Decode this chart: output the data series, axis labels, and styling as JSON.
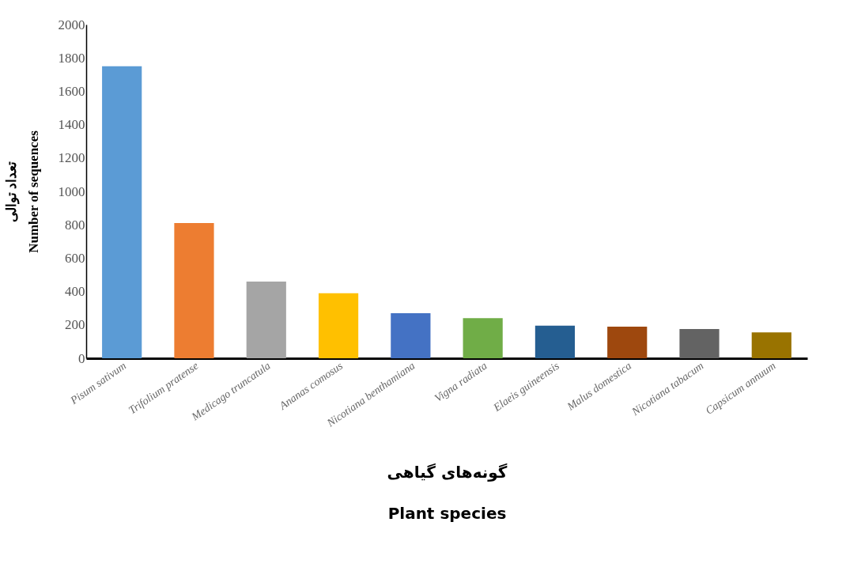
{
  "chart_data": {
    "type": "bar",
    "xlabel": "گونه‌های گیاهی\nPlant species",
    "ylabel": "تعداد توالی\nNumber of sequences",
    "categories": [
      "Pisum sativum",
      "Trifolium pratense",
      "Medicago truncatula",
      "Ananas comosus",
      "Nicotiana benthamiana",
      "Vigna radiata",
      "Elaeis guineensis",
      "Malus domestica",
      "Nicotiana tabacum",
      "Capsicum annuum"
    ],
    "values": [
      1750,
      810,
      460,
      390,
      270,
      240,
      195,
      190,
      175,
      155
    ],
    "colors": [
      "#5b9bd5",
      "#ed7d31",
      "#a5a5a5",
      "#ffc000",
      "#4472c4",
      "#70ad47",
      "#255e91",
      "#9e480e",
      "#636363",
      "#997300"
    ],
    "ylim": [
      0,
      2000
    ],
    "yticks": [
      0,
      200,
      400,
      600,
      800,
      1000,
      1200,
      1400,
      1600,
      1800,
      2000
    ],
    "grid": false
  }
}
